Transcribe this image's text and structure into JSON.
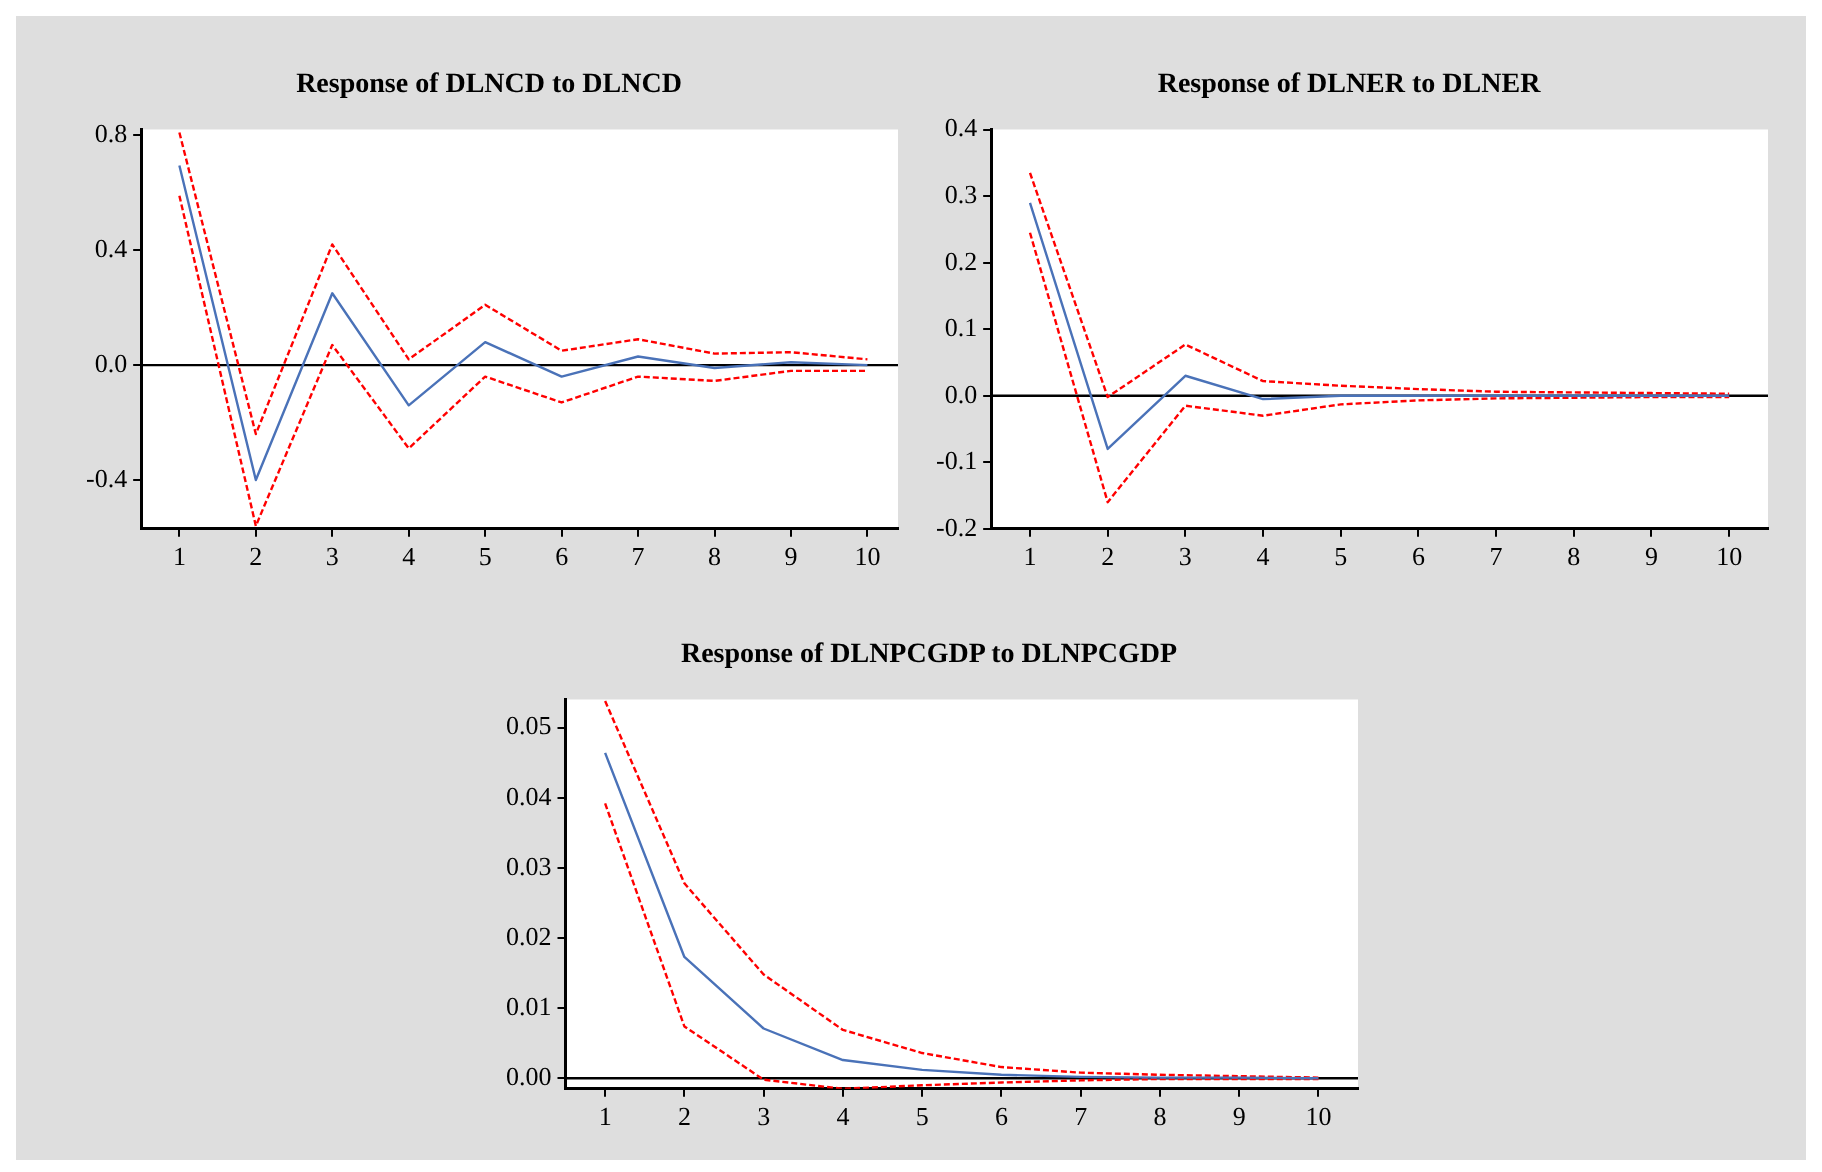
{
  "chart_data": [
    {
      "type": "line",
      "title": "Response of DLNCD to DLNCD",
      "x": [
        1,
        2,
        3,
        4,
        5,
        6,
        7,
        8,
        9,
        10
      ],
      "xlim": [
        0.5,
        10.4
      ],
      "xticks": [
        1,
        2,
        3,
        4,
        5,
        6,
        7,
        8,
        9,
        10
      ],
      "ylim": [
        -0.57,
        0.82
      ],
      "yticks": [
        {
          "value": -0.4,
          "label": "-0.4"
        },
        {
          "value": 0,
          "label": "0.0"
        },
        0.4,
        0.8
      ],
      "grid": false,
      "series": [
        {
          "color": "#4a72b8",
          "line_style": "solid",
          "values": [
            0.695,
            -0.4,
            0.25,
            -0.14,
            0.08,
            -0.04,
            0.03,
            -0.01,
            0.01,
            0.0
          ]
        },
        {
          "color": "#ff0000",
          "line_style": "dashed",
          "values": [
            0.81,
            -0.24,
            0.42,
            0.02,
            0.21,
            0.05,
            0.09,
            0.04,
            0.045,
            0.02
          ]
        },
        {
          "color": "#ff0000",
          "line_style": "dashed",
          "values": [
            0.59,
            -0.56,
            0.07,
            -0.29,
            -0.04,
            -0.13,
            -0.04,
            -0.055,
            -0.02,
            -0.02
          ]
        }
      ],
      "ref_lines": [
        {
          "axis": "y",
          "value": 0,
          "color": "#000000"
        }
      ]
    },
    {
      "type": "line",
      "title": "Response of DLNER to DLNER",
      "x": [
        1,
        2,
        3,
        4,
        5,
        6,
        7,
        8,
        9,
        10
      ],
      "xlim": [
        0.5,
        10.5
      ],
      "xticks": [
        1,
        2,
        3,
        4,
        5,
        6,
        7,
        8,
        9,
        10
      ],
      "ylim": [
        -0.2,
        0.4
      ],
      "yticks": [
        {
          "value": -0.2,
          "label": "-0.2"
        },
        {
          "value": -0.1,
          "label": "-0.1"
        },
        {
          "value": 0,
          "label": "0.0"
        },
        0.1,
        0.2,
        0.3,
        0.4
      ],
      "grid": false,
      "series": [
        {
          "color": "#4a72b8",
          "line_style": "solid",
          "values": [
            0.29,
            -0.08,
            0.03,
            -0.005,
            0.0,
            0.0,
            0.0,
            0.0,
            0.0,
            0.0
          ]
        },
        {
          "color": "#ff0000",
          "line_style": "dashed",
          "values": [
            0.335,
            -0.002,
            0.077,
            0.022,
            0.015,
            0.01,
            0.006,
            0.005,
            0.004,
            0.003
          ]
        },
        {
          "color": "#ff0000",
          "line_style": "dashed",
          "values": [
            0.245,
            -0.16,
            -0.015,
            -0.03,
            -0.013,
            -0.007,
            -0.004,
            -0.003,
            -0.002,
            -0.002
          ]
        }
      ],
      "ref_lines": [
        {
          "axis": "y",
          "value": 0,
          "color": "#000000"
        }
      ]
    },
    {
      "type": "line",
      "title": "Response of DLNPCGDP to DLNPCGDP",
      "x": [
        1,
        2,
        3,
        4,
        5,
        6,
        7,
        8,
        9,
        10
      ],
      "xlim": [
        0.5,
        10.5
      ],
      "xticks": [
        1,
        2,
        3,
        4,
        5,
        6,
        7,
        8,
        9,
        10
      ],
      "ylim": [
        -0.0015,
        0.054
      ],
      "yticks": [
        {
          "value": 0,
          "label": "0.00"
        },
        {
          "value": 0.01,
          "label": "0.01"
        },
        {
          "value": 0.02,
          "label": "0.02"
        },
        {
          "value": 0.03,
          "label": "0.03"
        },
        {
          "value": 0.04,
          "label": "0.04"
        },
        {
          "value": 0.05,
          "label": "0.05"
        }
      ],
      "grid": false,
      "series": [
        {
          "color": "#4a72b8",
          "line_style": "solid",
          "values": [
            0.0464,
            0.0173,
            0.0071,
            0.0026,
            0.0012,
            0.0005,
            0.0002,
            0.0001,
            0.0001,
            0.0
          ]
        },
        {
          "color": "#ff0000",
          "line_style": "dashed",
          "values": [
            0.0538,
            0.0278,
            0.0148,
            0.0069,
            0.0036,
            0.0016,
            0.0008,
            0.0005,
            0.0003,
            0.0001
          ]
        },
        {
          "color": "#ff0000",
          "line_style": "dashed",
          "values": [
            0.0392,
            0.0074,
            -0.0002,
            -0.0015,
            -0.001,
            -0.0006,
            -0.0003,
            -0.0001,
            -0.0001,
            -0.0001
          ]
        }
      ],
      "ref_lines": [
        {
          "axis": "y",
          "value": 0,
          "color": "#000000"
        }
      ]
    }
  ]
}
